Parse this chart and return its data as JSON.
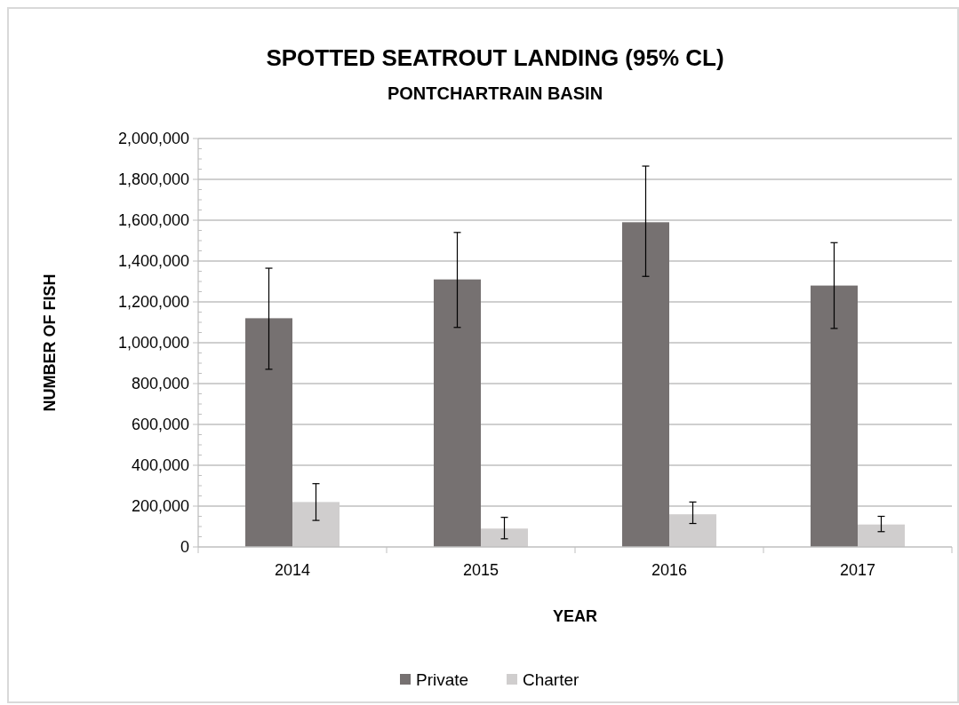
{
  "chart_data": {
    "type": "bar",
    "title": "SPOTTED SEATROUT LANDING (95% CL)",
    "subtitle": "PONTCHARTRAIN BASIN",
    "xlabel": "YEAR",
    "ylabel": "NUMBER OF FISH",
    "categories": [
      "2014",
      "2015",
      "2016",
      "2017"
    ],
    "series": [
      {
        "name": "Private",
        "color": "#767171",
        "values": [
          1120000,
          1310000,
          1590000,
          1280000
        ],
        "errors": [
          [
            870000,
            1365000
          ],
          [
            1075000,
            1540000
          ],
          [
            1325000,
            1865000
          ],
          [
            1070000,
            1490000
          ]
        ]
      },
      {
        "name": "Charter",
        "color": "#d0cece",
        "values": [
          220000,
          90000,
          160000,
          110000
        ],
        "errors": [
          [
            130000,
            310000
          ],
          [
            40000,
            145000
          ],
          [
            115000,
            220000
          ],
          [
            75000,
            150000
          ]
        ]
      }
    ],
    "ylim": [
      0,
      2000000
    ],
    "yticks": [
      {
        "value": 0,
        "label": "0"
      },
      {
        "value": 50000,
        "label": null
      },
      {
        "value": 100000,
        "label": null
      },
      {
        "value": 150000,
        "label": null
      },
      {
        "value": 200000,
        "label": "200,000"
      },
      {
        "value": 250000,
        "label": null
      },
      {
        "value": 300000,
        "label": null
      },
      {
        "value": 350000,
        "label": null
      },
      {
        "value": 400000,
        "label": "400,000"
      },
      {
        "value": 450000,
        "label": null
      },
      {
        "value": 500000,
        "label": null
      },
      {
        "value": 550000,
        "label": null
      },
      {
        "value": 600000,
        "label": "600,000"
      },
      {
        "value": 650000,
        "label": null
      },
      {
        "value": 700000,
        "label": null
      },
      {
        "value": 750000,
        "label": null
      },
      {
        "value": 800000,
        "label": "800,000"
      },
      {
        "value": 850000,
        "label": null
      },
      {
        "value": 900000,
        "label": null
      },
      {
        "value": 950000,
        "label": null
      },
      {
        "value": 1000000,
        "label": "1,000,000"
      },
      {
        "value": 1050000,
        "label": null
      },
      {
        "value": 1100000,
        "label": null
      },
      {
        "value": 1150000,
        "label": null
      },
      {
        "value": 1200000,
        "label": "1,200,000"
      },
      {
        "value": 1250000,
        "label": null
      },
      {
        "value": 1300000,
        "label": null
      },
      {
        "value": 1350000,
        "label": null
      },
      {
        "value": 1400000,
        "label": "1,400,000"
      },
      {
        "value": 1450000,
        "label": null
      },
      {
        "value": 1500000,
        "label": null
      },
      {
        "value": 1550000,
        "label": null
      },
      {
        "value": 1600000,
        "label": "1,600,000"
      },
      {
        "value": 1650000,
        "label": null
      },
      {
        "value": 1700000,
        "label": null
      },
      {
        "value": 1750000,
        "label": null
      },
      {
        "value": 1800000,
        "label": "1,800,000"
      },
      {
        "value": 1850000,
        "label": null
      },
      {
        "value": 1900000,
        "label": null
      },
      {
        "value": 1950000,
        "label": null
      },
      {
        "value": 2000000,
        "label": "2,000,000"
      }
    ],
    "grid": "y",
    "legend": "bottom"
  }
}
